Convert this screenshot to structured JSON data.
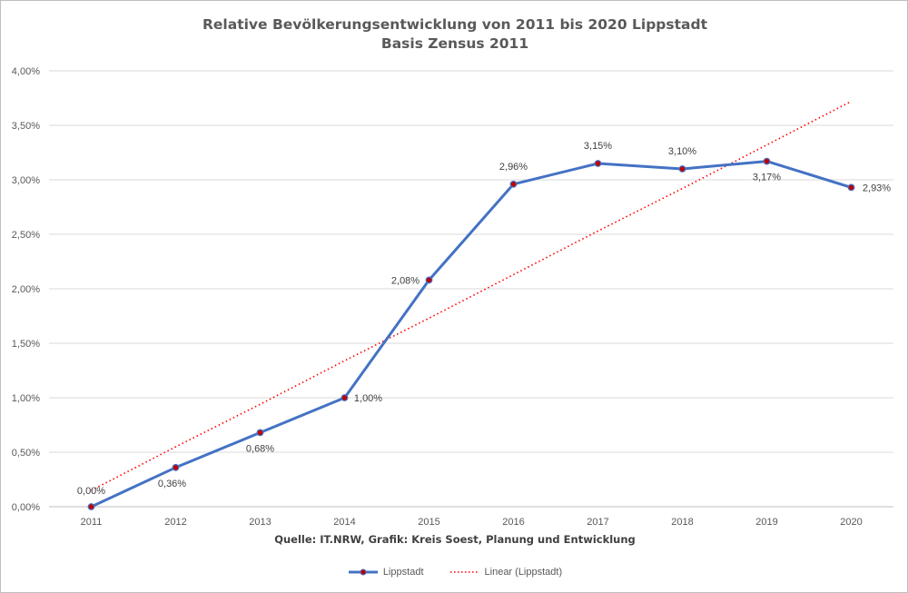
{
  "chart_data": {
    "type": "line",
    "title": "Relative Bevölkerungsentwicklung von 2011 bis 2020 Lippstadt",
    "subtitle": "Basis Zensus 2011",
    "xlabel": "Quelle: IT.NRW, Grafik: Kreis Soest, Planung und Entwicklung",
    "ylabel": "",
    "categories": [
      "2011",
      "2012",
      "2013",
      "2014",
      "2015",
      "2016",
      "2017",
      "2018",
      "2019",
      "2020"
    ],
    "ylim": [
      0,
      4
    ],
    "yticks": [
      "0,00%",
      "0,50%",
      "1,00%",
      "1,50%",
      "2,00%",
      "2,50%",
      "3,00%",
      "3,50%",
      "4,00%"
    ],
    "grid": true,
    "legend_position": "bottom",
    "series": [
      {
        "name": "Lippstadt",
        "color": "#4472c4",
        "marker_color": "#c00000",
        "values": [
          0.0,
          0.36,
          0.68,
          1.0,
          2.08,
          2.96,
          3.15,
          3.1,
          3.17,
          2.93
        ],
        "data_labels": [
          "0,00%",
          "0,36%",
          "0,68%",
          "1,00%",
          "2,08%",
          "2,96%",
          "3,15%",
          "3,10%",
          "3,17%",
          "2,93%"
        ]
      },
      {
        "name": "Linear (Lippstadt)",
        "color": "#ff0000",
        "style": "dotted",
        "trendline": true,
        "values": [
          0.15,
          0.55,
          0.94,
          1.34,
          1.73,
          2.13,
          2.53,
          2.92,
          3.32,
          3.72
        ]
      }
    ]
  }
}
